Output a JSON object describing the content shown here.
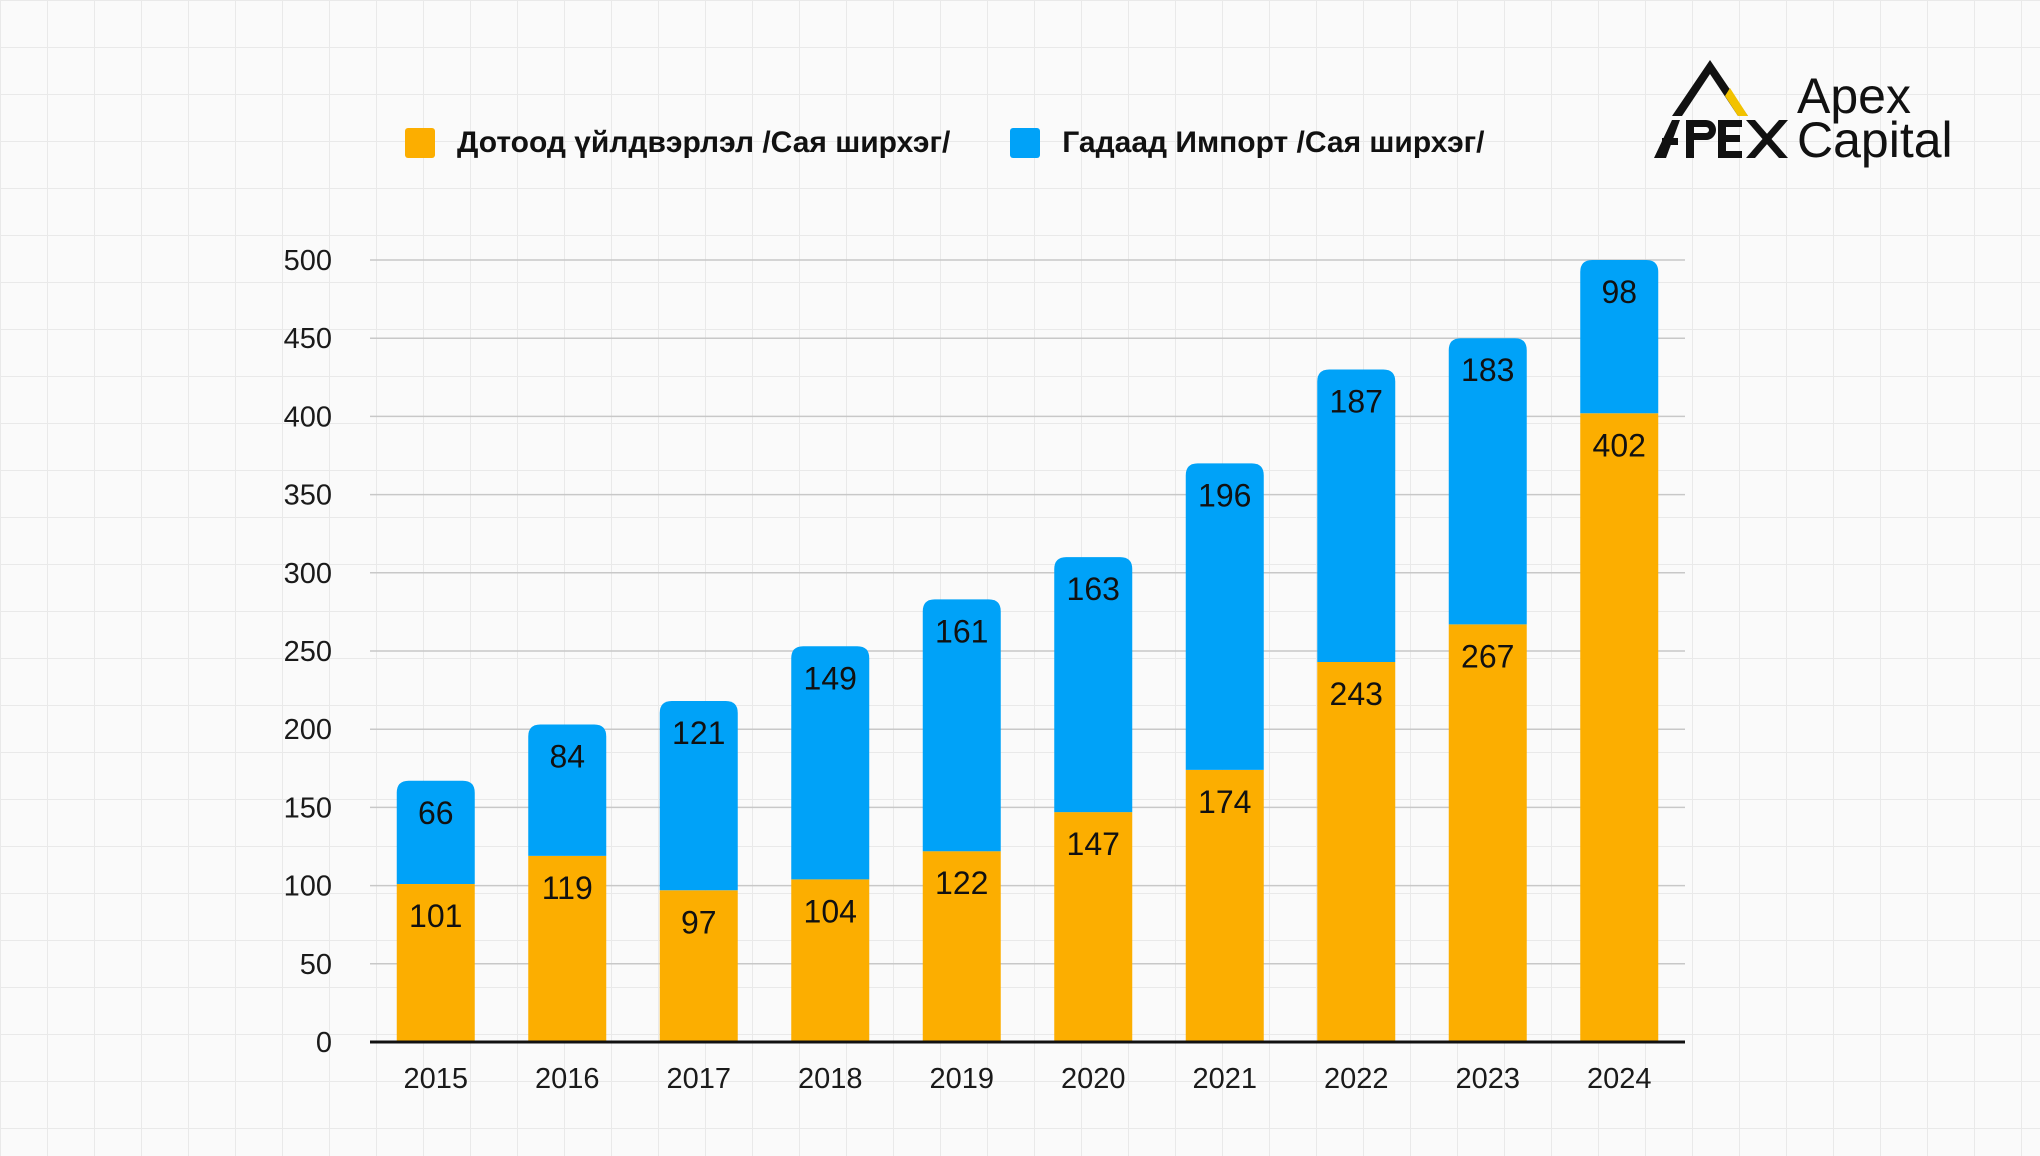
{
  "legend": {
    "domestic_label": "Дотоод үйлдвэрлэл /Сая ширхэг/",
    "import_label": "Гадаад Импорт /Сая ширхэг/"
  },
  "logo": {
    "mark_text": "APEX",
    "line1": "Apex",
    "line2": "Capital"
  },
  "colors": {
    "domestic": "#FCAE00",
    "import": "#00A2F8",
    "logo_accent": "#F2C200"
  },
  "chart_data": {
    "type": "bar",
    "stacked": true,
    "categories": [
      "2015",
      "2016",
      "2017",
      "2018",
      "2019",
      "2020",
      "2021",
      "2022",
      "2023",
      "2024"
    ],
    "series": [
      {
        "name": "Дотоод үйлдвэрлэл /Сая ширхэг/",
        "values": [
          101,
          119,
          97,
          104,
          122,
          147,
          174,
          243,
          267,
          402
        ]
      },
      {
        "name": "Гадаад Импорт /Сая ширхэг/",
        "values": [
          66,
          84,
          121,
          149,
          161,
          163,
          196,
          187,
          183,
          98
        ]
      }
    ],
    "yticks": [
      0,
      50,
      100,
      150,
      200,
      250,
      300,
      350,
      400,
      450,
      500
    ],
    "ylim": [
      0,
      500
    ],
    "xlabel": "",
    "ylabel": "",
    "title": "",
    "grid": true,
    "legend_position": "top"
  }
}
